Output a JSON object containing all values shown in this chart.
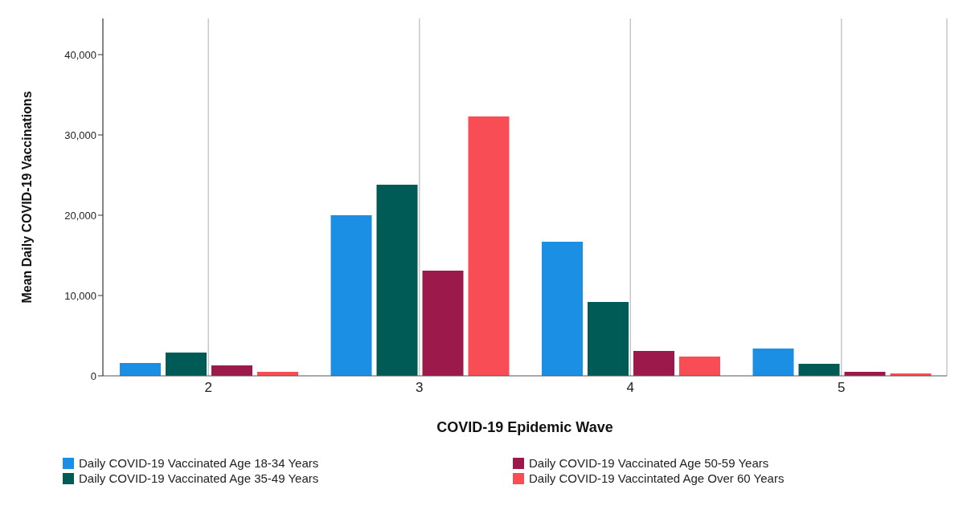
{
  "chart_data": {
    "type": "bar",
    "xlabel": "COVID-19 Epidemic Wave",
    "ylabel": "Mean Daily COVID-19 Vaccinations",
    "categories": [
      "2",
      "3",
      "4",
      "5"
    ],
    "series": [
      {
        "name": "Daily COVID-19 Vaccinated Age 18-34 Years",
        "color": "#1a8fe3",
        "values": [
          1600,
          20000,
          16700,
          3400
        ]
      },
      {
        "name": "Daily COVID-19 Vaccinated Age 35-49 Years",
        "color": "#005a55",
        "values": [
          2900,
          23800,
          9200,
          1500
        ]
      },
      {
        "name": "Daily COVID-19 Vaccinated Age 50-59 Years",
        "color": "#9b1a4b",
        "values": [
          1300,
          13100,
          3100,
          500
        ]
      },
      {
        "name": "Daily COVID-19 Vaccintated Age Over 60 Years",
        "color": "#f94d56",
        "values": [
          500,
          32300,
          2400,
          300
        ]
      }
    ],
    "ylim": [
      0,
      44500
    ],
    "yticks": [
      0,
      {
        "value": 10000,
        "label": "10,000"
      },
      {
        "value": 20000,
        "label": "20,000"
      },
      {
        "value": 30000,
        "label": "30,000"
      },
      {
        "value": 40000,
        "label": "40,000"
      }
    ],
    "grid": "x",
    "legend": "bottom"
  }
}
